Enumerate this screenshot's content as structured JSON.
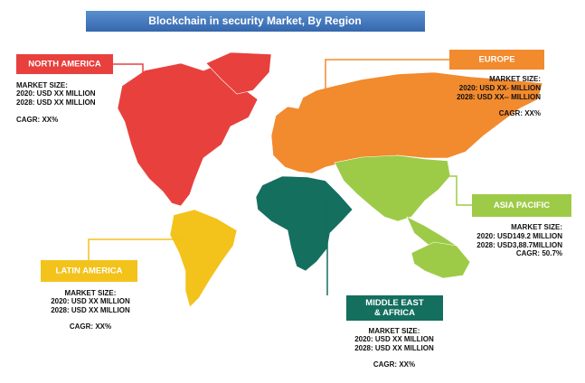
{
  "title": "Blockchain in security Market, By Region",
  "regions": [
    {
      "label": [
        "NORTH  AMERICA"
      ],
      "market_size": "MARKET SIZE:",
      "y2020": "2020: USD XX MILLION",
      "y2028": "2028: USD XX MILLION",
      "cagr": "CAGR: XX%",
      "color": "#e8403d"
    },
    {
      "label": [
        "EUROPE"
      ],
      "market_size": "MARKET SIZE:",
      "y2020": "2020: USD XX- MILLION",
      "y2028": "2028: USD XX-- MILLION",
      "cagr": "CAGR: XX%",
      "color": "#f28a2e"
    },
    {
      "label": [
        "ASIA PACIFIC"
      ],
      "market_size": "MARKET SIZE:",
      "y2020": "2020: USD149.2 MILLION",
      "y2028": "2028: USD3,88.7MILLION",
      "cagr": "CAGR: 50.7%",
      "color": "#9dcb48"
    },
    {
      "label": [
        "LATIN  AMERICA"
      ],
      "market_size": "MARKET SIZE:",
      "y2020": "2020: USD XX MILLION",
      "y2028": "2028: USD XX MILLION",
      "cagr": "CAGR: XX%",
      "color": "#f3c21b"
    },
    {
      "label": [
        "MIDDLE EAST",
        "& AFRICA"
      ],
      "market_size": "MARKET SIZE:",
      "y2020": "2020: USD XX MILLION",
      "y2028": "2028: USD XX MILLION",
      "cagr": "CAGR: XX%",
      "color": "#146f5f"
    }
  ]
}
